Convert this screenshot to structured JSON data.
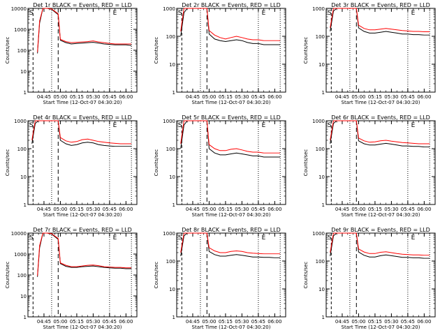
{
  "start_time_label": "Start Time (12-Oct-07 04:30:20)",
  "ylabel": "Counts/sec",
  "ytick_labels": [
    "1",
    "10",
    "100",
    "1000",
    "10000"
  ],
  "xtick_labels": [
    "04:45",
    "05:00",
    "05:15",
    "05:30",
    "05:45",
    "06:00"
  ],
  "marker_s": "S",
  "marker_e": "E",
  "colors": {
    "events": "#000000",
    "lld": "#ff0000"
  },
  "chart_data": [
    {
      "type": "line",
      "title": "Det 1r BLACK = Events, RED = LLD",
      "ylim": [
        1,
        10000
      ],
      "ylog": true,
      "xrange": [
        "04:30:20",
        "06:10:00"
      ],
      "x": [
        "04:39",
        "04:41",
        "04:44",
        "04:48",
        "04:52",
        "04:58",
        "05:00",
        "05:05",
        "05:10",
        "05:15",
        "05:20",
        "05:25",
        "05:30",
        "05:35",
        "05:40",
        "05:45",
        "05:50",
        "05:55",
        "06:00",
        "06:05"
      ],
      "series": [
        {
          "name": "Events",
          "values": [
            70,
            2000,
            10000,
            10000,
            9000,
            5000,
            300,
            230,
            200,
            210,
            220,
            230,
            240,
            220,
            200,
            190,
            180,
            180,
            180,
            170
          ]
        },
        {
          "name": "LLD",
          "values": [
            80,
            2500,
            10000,
            10000,
            9500,
            5500,
            330,
            260,
            230,
            240,
            250,
            260,
            280,
            250,
            230,
            210,
            200,
            200,
            200,
            200
          ]
        }
      ]
    },
    {
      "type": "line",
      "title": "Det 2r BLACK = Events, RED = LLD",
      "ylim": [
        1,
        1000
      ],
      "ylog": true,
      "xrange": [
        "04:30:20",
        "06:10:00"
      ],
      "x": [
        "04:34",
        "04:37",
        "04:40",
        "04:50",
        "04:56",
        "04:58",
        "05:00",
        "05:05",
        "05:10",
        "05:15",
        "05:20",
        "05:25",
        "05:30",
        "05:35",
        "05:40",
        "05:45",
        "05:50",
        "05:55",
        "06:00",
        "06:05"
      ],
      "series": [
        {
          "name": "Events",
          "values": [
            100,
            700,
            1000,
            1000,
            1000,
            1000,
            120,
            80,
            70,
            65,
            70,
            75,
            70,
            60,
            55,
            55,
            50,
            50,
            50,
            50
          ]
        },
        {
          "name": "LLD",
          "values": [
            150,
            1000,
            1000,
            1000,
            1000,
            1000,
            160,
            110,
            90,
            80,
            90,
            100,
            90,
            80,
            75,
            75,
            70,
            70,
            70,
            70
          ]
        }
      ]
    },
    {
      "type": "line",
      "title": "Det 3r BLACK = Events, RED = LLD",
      "ylim": [
        1,
        1000
      ],
      "ylog": true,
      "xrange": [
        "04:30:20",
        "06:10:00"
      ],
      "x": [
        "04:34",
        "04:37",
        "04:40",
        "04:50",
        "04:56",
        "04:58",
        "05:00",
        "05:05",
        "05:10",
        "05:15",
        "05:20",
        "05:25",
        "05:30",
        "05:35",
        "05:40",
        "05:45",
        "05:50",
        "05:55",
        "06:00",
        "06:05"
      ],
      "series": [
        {
          "name": "Events",
          "values": [
            150,
            800,
            1000,
            1000,
            1000,
            1000,
            200,
            150,
            130,
            130,
            140,
            150,
            140,
            130,
            120,
            120,
            115,
            115,
            110,
            110
          ]
        },
        {
          "name": "LLD",
          "values": [
            200,
            1000,
            1000,
            1000,
            1000,
            1000,
            250,
            190,
            170,
            170,
            180,
            190,
            180,
            170,
            160,
            155,
            150,
            150,
            145,
            145
          ]
        }
      ]
    },
    {
      "type": "line",
      "title": "Det 4r BLACK = Events, RED = LLD",
      "ylim": [
        1,
        1000
      ],
      "ylog": true,
      "xrange": [
        "04:30:20",
        "06:10:00"
      ],
      "x": [
        "04:34",
        "04:37",
        "04:40",
        "04:50",
        "04:56",
        "04:58",
        "05:00",
        "05:05",
        "05:10",
        "05:15",
        "05:20",
        "05:25",
        "05:30",
        "05:35",
        "05:40",
        "05:45",
        "05:50",
        "05:55",
        "06:00",
        "06:05"
      ],
      "series": [
        {
          "name": "Events",
          "values": [
            150,
            800,
            1000,
            1000,
            1000,
            1000,
            200,
            150,
            130,
            140,
            160,
            170,
            160,
            140,
            130,
            125,
            120,
            120,
            120,
            120
          ]
        },
        {
          "name": "LLD",
          "values": [
            200,
            1000,
            1000,
            1000,
            1000,
            1000,
            250,
            190,
            170,
            180,
            210,
            220,
            200,
            180,
            170,
            160,
            155,
            150,
            150,
            150
          ]
        }
      ]
    },
    {
      "type": "line",
      "title": "Det 5r BLACK = Events, RED = LLD",
      "ylim": [
        1,
        1000
      ],
      "ylog": true,
      "xrange": [
        "04:30:20",
        "06:10:00"
      ],
      "x": [
        "04:34",
        "04:37",
        "04:40",
        "04:50",
        "04:56",
        "04:58",
        "05:00",
        "05:05",
        "05:10",
        "05:15",
        "05:20",
        "05:25",
        "05:30",
        "05:35",
        "05:40",
        "05:45",
        "05:50",
        "05:55",
        "06:00",
        "06:05"
      ],
      "series": [
        {
          "name": "Events",
          "values": [
            100,
            700,
            1000,
            1000,
            1000,
            1000,
            100,
            70,
            60,
            60,
            65,
            70,
            65,
            60,
            55,
            55,
            50,
            50,
            50,
            50
          ]
        },
        {
          "name": "LLD",
          "values": [
            150,
            1000,
            1000,
            1000,
            1000,
            1000,
            140,
            100,
            85,
            85,
            95,
            100,
            90,
            80,
            75,
            75,
            70,
            70,
            70,
            70
          ]
        }
      ]
    },
    {
      "type": "line",
      "title": "Det 6r BLACK = Events, RED = LLD",
      "ylim": [
        1,
        1000
      ],
      "ylog": true,
      "xrange": [
        "04:30:20",
        "06:10:00"
      ],
      "x": [
        "04:34",
        "04:37",
        "04:40",
        "04:50",
        "04:56",
        "04:58",
        "05:00",
        "05:05",
        "05:10",
        "05:15",
        "05:20",
        "05:25",
        "05:30",
        "05:35",
        "05:40",
        "05:45",
        "05:50",
        "05:55",
        "06:00",
        "06:05"
      ],
      "series": [
        {
          "name": "Events",
          "values": [
            150,
            800,
            1000,
            1000,
            1000,
            1000,
            190,
            150,
            135,
            135,
            145,
            155,
            145,
            135,
            125,
            125,
            120,
            120,
            115,
            115
          ]
        },
        {
          "name": "LLD",
          "values": [
            200,
            1000,
            1000,
            1000,
            1000,
            1000,
            240,
            190,
            170,
            175,
            190,
            200,
            185,
            175,
            165,
            160,
            155,
            150,
            150,
            150
          ]
        }
      ]
    },
    {
      "type": "line",
      "title": "Det 7r BLACK = Events, RED = LLD",
      "ylim": [
        1,
        10000
      ],
      "ylog": true,
      "xrange": [
        "04:30:20",
        "06:10:00"
      ],
      "x": [
        "04:39",
        "04:41",
        "04:44",
        "04:48",
        "04:52",
        "04:58",
        "05:00",
        "05:05",
        "05:10",
        "05:15",
        "05:20",
        "05:25",
        "05:30",
        "05:35",
        "05:40",
        "05:45",
        "05:50",
        "05:55",
        "06:00",
        "06:05"
      ],
      "series": [
        {
          "name": "Events",
          "values": [
            80,
            2000,
            10000,
            10000,
            9000,
            5000,
            350,
            260,
            230,
            230,
            250,
            260,
            270,
            250,
            230,
            220,
            210,
            210,
            200,
            200
          ]
        },
        {
          "name": "LLD",
          "values": [
            90,
            2500,
            10000,
            10000,
            9500,
            5500,
            380,
            290,
            250,
            250,
            270,
            290,
            300,
            280,
            250,
            240,
            230,
            230,
            220,
            220
          ]
        }
      ]
    },
    {
      "type": "line",
      "title": "Det 8r BLACK = Events, RED = LLD",
      "ylim": [
        1,
        1000
      ],
      "ylog": true,
      "xrange": [
        "04:30:20",
        "06:10:00"
      ],
      "x": [
        "04:34",
        "04:37",
        "04:40",
        "04:50",
        "04:56",
        "04:58",
        "05:00",
        "05:05",
        "05:10",
        "05:15",
        "05:20",
        "05:25",
        "05:30",
        "05:35",
        "05:40",
        "05:45",
        "05:50",
        "05:55",
        "06:00",
        "06:05"
      ],
      "series": [
        {
          "name": "Events",
          "values": [
            150,
            800,
            1000,
            1000,
            1000,
            1000,
            220,
            170,
            150,
            150,
            160,
            170,
            160,
            150,
            140,
            140,
            135,
            135,
            130,
            130
          ]
        },
        {
          "name": "LLD",
          "values": [
            200,
            1000,
            1000,
            1000,
            1000,
            1000,
            300,
            230,
            200,
            200,
            220,
            230,
            220,
            200,
            190,
            185,
            180,
            180,
            180,
            180
          ]
        }
      ]
    },
    {
      "type": "line",
      "title": "Det 9r BLACK = Events, RED = LLD",
      "ylim": [
        1,
        1000
      ],
      "ylog": true,
      "xrange": [
        "04:30:20",
        "06:10:00"
      ],
      "x": [
        "04:34",
        "04:37",
        "04:40",
        "04:50",
        "04:56",
        "04:58",
        "05:00",
        "05:05",
        "05:10",
        "05:15",
        "05:20",
        "05:25",
        "05:30",
        "05:35",
        "05:40",
        "05:45",
        "05:50",
        "05:55",
        "06:00",
        "06:05"
      ],
      "series": [
        {
          "name": "Events",
          "values": [
            150,
            800,
            1000,
            1000,
            1000,
            1000,
            210,
            160,
            140,
            140,
            155,
            165,
            155,
            145,
            135,
            135,
            130,
            130,
            125,
            125
          ]
        },
        {
          "name": "LLD",
          "values": [
            200,
            1000,
            1000,
            1000,
            1000,
            1000,
            270,
            210,
            185,
            185,
            205,
            215,
            200,
            185,
            175,
            170,
            165,
            165,
            160,
            160
          ]
        }
      ]
    }
  ]
}
